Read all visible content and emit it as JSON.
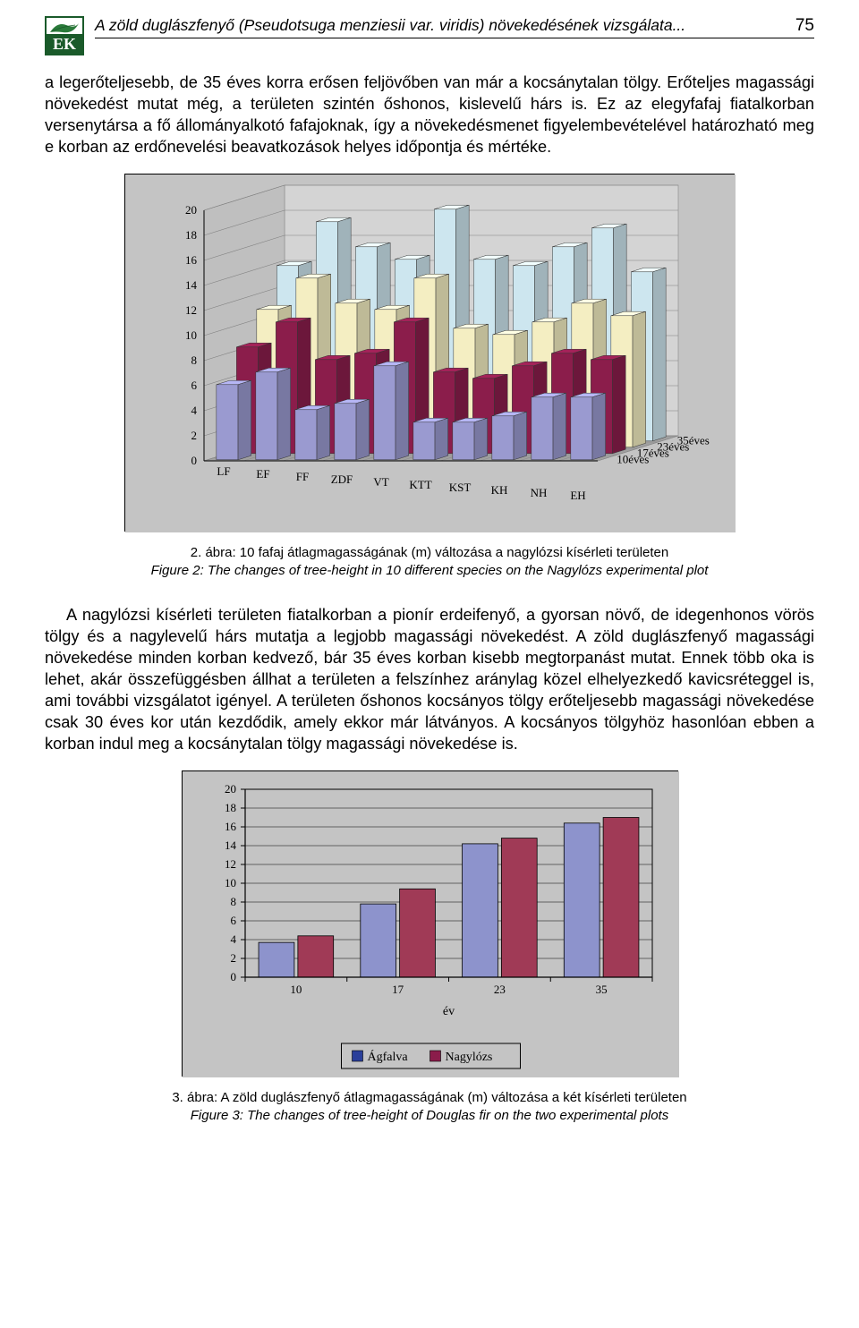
{
  "header": {
    "running_title": "A zöld duglászfenyő (Pseudotsuga menziesii var. viridis) növekedésének vizsgálata...",
    "page_number": "75",
    "logo_text": "EK"
  },
  "paragraph1": "a legerőteljesebb, de 35 éves korra erősen feljövőben van már a kocsánytalan tölgy. Erőteljes magassági növekedést mutat még, a területen szintén őshonos, kislevelű hárs is. Ez az elegyfafaj fiatalkorban versenytársa a fő állományalkotó fafajoknak, így a növekedésmenet figyelembevételével határozható meg e korban az erdőnevelési beavatkozások helyes időpontja és mértéke.",
  "chart1": {
    "type": "bar3d_grouped",
    "background_color": "#c4c4c4",
    "wall_color": "#d4d4d4",
    "floor_color": "#a0a0a0",
    "grid_color": "#808080",
    "categories": [
      "LF",
      "EF",
      "FF",
      "ZDF",
      "VT",
      "KTT",
      "KST",
      "KH",
      "NH",
      "EH"
    ],
    "depth_labels": [
      "35éves",
      "23éves",
      "17éves",
      "10éves"
    ],
    "y_ticks": [
      0,
      2,
      4,
      6,
      8,
      10,
      12,
      14,
      16,
      18,
      20
    ],
    "ylim": [
      0,
      20
    ],
    "series": [
      {
        "name": "10éves",
        "color": "#9a9ad0",
        "values": [
          6.0,
          7.0,
          4.0,
          4.5,
          7.5,
          3.0,
          3.0,
          3.5,
          5.0,
          5.0
        ]
      },
      {
        "name": "17éves",
        "color": "#8b1d4b",
        "values": [
          8.5,
          10.5,
          7.5,
          8.0,
          10.5,
          6.5,
          6.0,
          7.0,
          8.0,
          7.5
        ]
      },
      {
        "name": "23éves",
        "color": "#f4eec2",
        "values": [
          11.0,
          13.5,
          11.5,
          11.0,
          13.5,
          9.5,
          9.0,
          10.0,
          11.5,
          10.5
        ]
      },
      {
        "name": "35éves",
        "color": "#cde6ef",
        "values": [
          14.0,
          17.5,
          15.5,
          14.5,
          18.5,
          14.5,
          14.0,
          15.5,
          17.0,
          13.5
        ]
      }
    ],
    "tick_fontsize": 13,
    "label_fontsize": 13
  },
  "caption1": {
    "line1": "2. ábra: 10 fafaj átlagmagasságának (m) változása a nagylózsi kísérleti területen",
    "line2": "Figure 2: The changes of tree-height in 10 different species on the Nagylózs experimental plot"
  },
  "paragraph2": "A nagylózsi kísérleti területen fiatalkorban a pionír erdeifenyő, a gyorsan növő, de idegenhonos vörös tölgy és a nagylevelű hárs mutatja a legjobb magassági növekedést. A zöld duglászfenyő magassági növekedése minden korban kedvező, bár 35 éves korban kisebb megtorpanást mutat. Ennek több oka is lehet, akár összefüggésben állhat a területen a felszínhez aránylag közel elhelyezkedő kavicsréteggel is, ami további vizsgálatot igényel. A területen őshonos kocsányos tölgy erőteljesebb magassági növekedése csak 30 éves kor után kezdődik, amely ekkor már látványos. A kocsányos tölgyhöz hasonlóan ebben a korban indul meg a kocsánytalan tölgy magassági növekedése is.",
  "chart2": {
    "type": "bar_grouped",
    "background_color": "#c4c4c4",
    "plot_bg": "#c4c4c4",
    "grid_color": "#000000",
    "categories": [
      "10",
      "17",
      "23",
      "35"
    ],
    "xlabel": "év",
    "y_ticks": [
      0,
      2,
      4,
      6,
      8,
      10,
      12,
      14,
      16,
      18,
      20
    ],
    "ylim": [
      0,
      20
    ],
    "series": [
      {
        "name": "Ágfalva",
        "color": "#8d93cc",
        "marker": "#2a3f9a",
        "values": [
          3.7,
          7.8,
          14.2,
          16.4
        ]
      },
      {
        "name": "Nagylózs",
        "color": "#a03a56",
        "marker": "#8b1d4b",
        "values": [
          4.4,
          9.4,
          14.8,
          17.0
        ]
      }
    ],
    "bar_width": 0.35,
    "tick_fontsize": 13,
    "label_fontsize": 13,
    "legend_border": "#000000",
    "legend_bg": "#c4c4c4"
  },
  "caption2": {
    "line1": "3. ábra: A zöld duglászfenyő átlagmagasságának (m) változása a két kísérleti területen",
    "line2": "Figure 3: The changes of tree-height of Douglas fir on the two experimental plots"
  }
}
